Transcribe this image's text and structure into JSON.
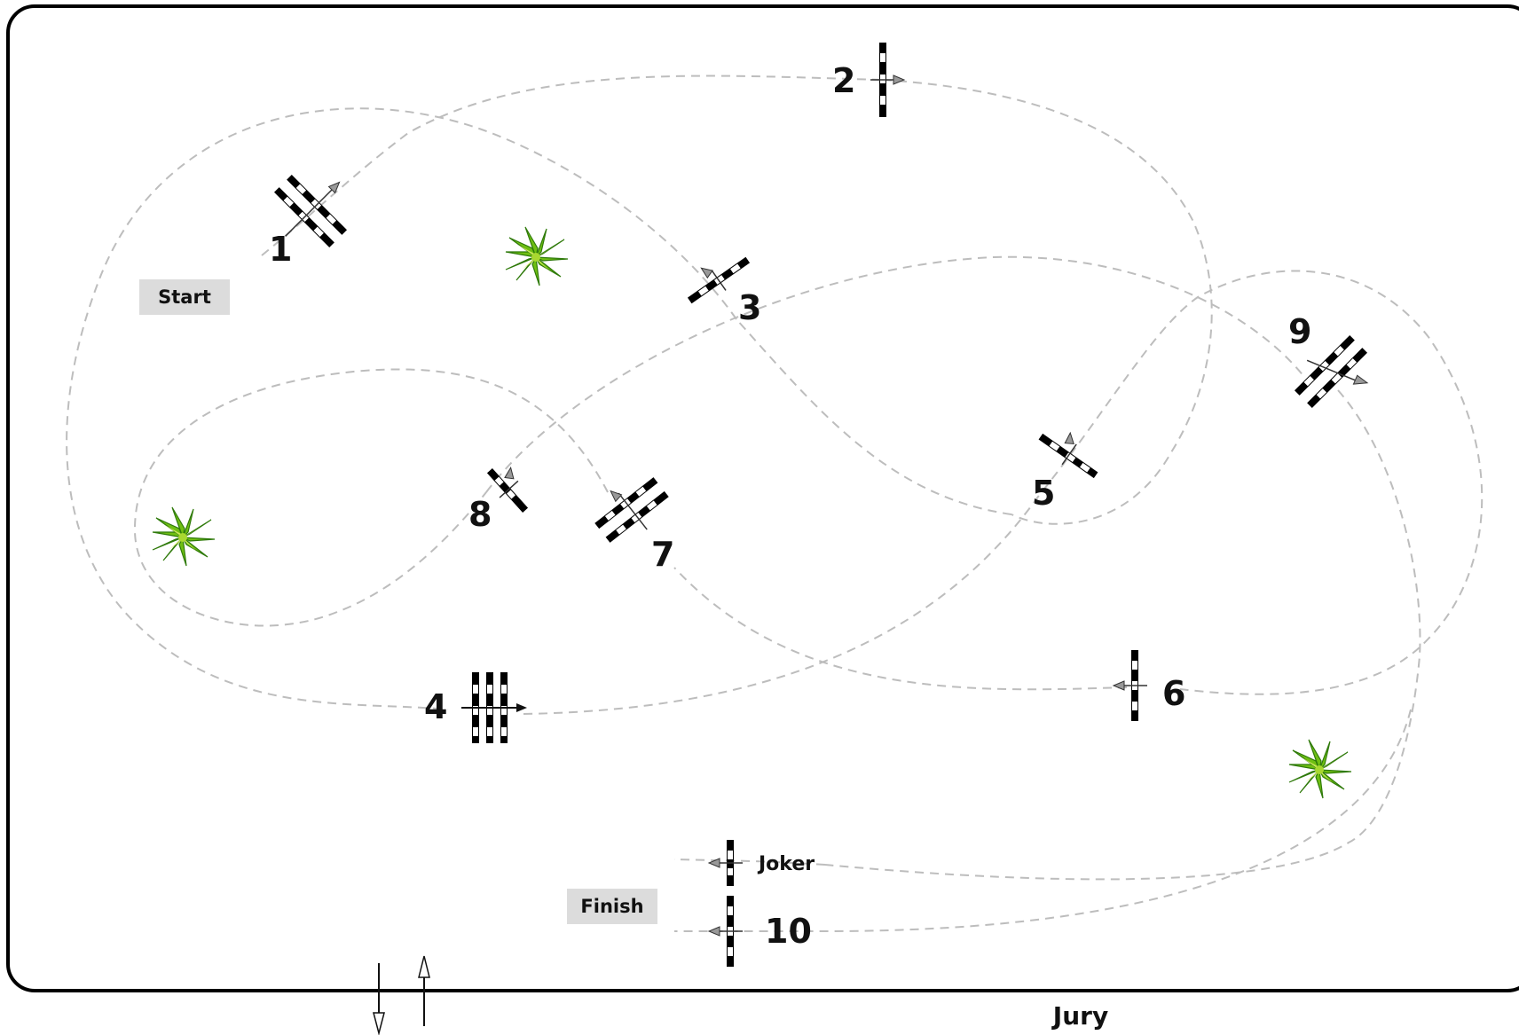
{
  "title": "",
  "labels": {
    "start": "Start",
    "finish": "Finish",
    "jury": "Jury",
    "joker": "Joker"
  },
  "obstacles": [
    {
      "number": "1",
      "type": "oxer"
    },
    {
      "number": "2",
      "type": "vertical"
    },
    {
      "number": "3",
      "type": "vertical"
    },
    {
      "number": "4",
      "type": "triple-bar"
    },
    {
      "number": "5",
      "type": "vertical"
    },
    {
      "number": "6",
      "type": "vertical"
    },
    {
      "number": "7",
      "type": "oxer"
    },
    {
      "number": "8",
      "type": "vertical"
    },
    {
      "number": "9",
      "type": "oxer"
    },
    {
      "number": "10",
      "type": "vertical"
    },
    {
      "number": "Joker",
      "type": "vertical"
    }
  ],
  "decorations": [
    "plant-icon",
    "plant-icon",
    "plant-icon"
  ],
  "entrance": {
    "icons": [
      "arrow-down-icon",
      "arrow-up-icon"
    ]
  },
  "colors": {
    "arena_border": "#000000",
    "route": "#bdbdbd",
    "label_bg": "#dcdcdc",
    "plant_green": "#7cc41b",
    "plant_light": "#d8f060"
  }
}
